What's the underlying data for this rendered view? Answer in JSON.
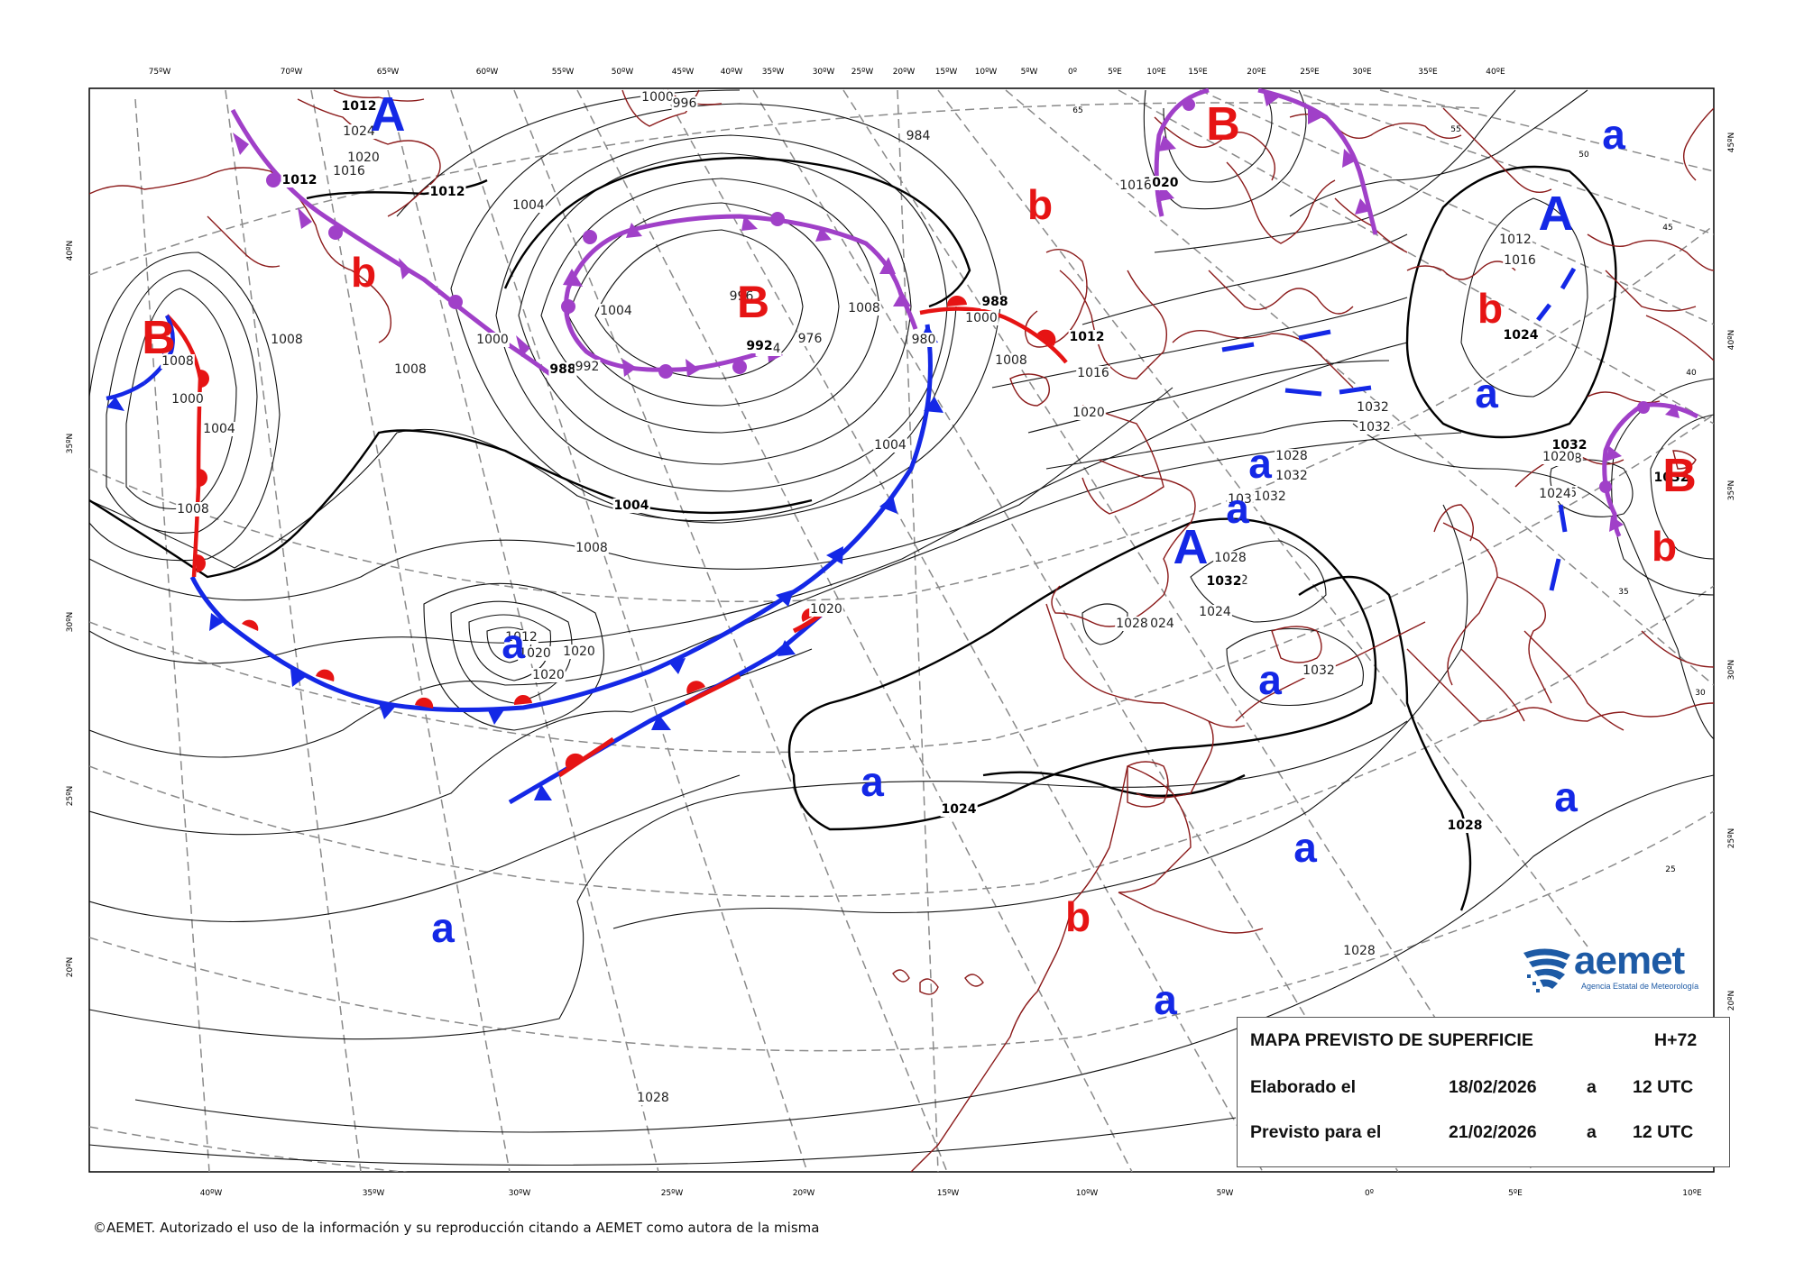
{
  "infobox": {
    "title": "MAPA PREVISTO DE SUPERFICIE",
    "horizon": "H+72",
    "issued_label": "Elaborado el",
    "issued_date": "18/02/2026",
    "issued_at": "a",
    "issued_time": "12 UTC",
    "valid_label": "Previsto para el",
    "valid_date": "21/02/2026",
    "valid_at": "a",
    "valid_time": "12 UTC"
  },
  "logo": {
    "name": "aemet",
    "subtitle": "Agencia Estatal de Meteorología",
    "icon": "aemet-logo-icon"
  },
  "copyright": "©AEMET. Autorizado el uso de la información y su reproducción citando a AEMET como autora de la misma",
  "axis_labels": {
    "top": [
      "75ºW",
      "70ºW",
      "65ºW",
      "60ºW",
      "55ºW",
      "50ºW",
      "45ºW",
      "40ºW",
      "35ºW",
      "30ºW",
      "25ºW",
      "20ºW",
      "15ºW",
      "10ºW",
      "5ºW",
      "0º",
      "5ºE",
      "10ºE",
      "15ºE",
      "20ºE",
      "25ºE",
      "30ºE",
      "35ºE",
      "40ºE"
    ],
    "bottom": [
      "40ºW",
      "35ºW",
      "30ºW",
      "25ºW",
      "20ºW",
      "15ºW",
      "10ºW",
      "5ºW",
      "0º",
      "5ºE",
      "10ºE"
    ],
    "left": [
      "40ºN",
      "35ºN",
      "30ºN",
      "25ºN",
      "20ºN"
    ],
    "right": [
      "45ºN",
      "40ºN",
      "35ºN",
      "30ºN",
      "25ºN",
      "20ºN"
    ]
  },
  "inner_grid_labels": [
    "65",
    "55",
    "50",
    "45",
    "40",
    "35",
    "30",
    "25"
  ],
  "isobar_labels": [
    "1012",
    "1024",
    "1020",
    "1016",
    "1012",
    "1012",
    "1004",
    "1008",
    "1000",
    "1004",
    "1008",
    "1008",
    "1008",
    "1000",
    "1004",
    "1008",
    "988",
    "1000",
    "996",
    "1004",
    "1008",
    "976",
    "984",
    "992",
    "988",
    "992",
    "980",
    "984",
    "1000",
    "996",
    "1004",
    "1008",
    "1012",
    "1016",
    "1020",
    "1012",
    "1016",
    "1024",
    "1028",
    "1032",
    "1032",
    "1032",
    "1028",
    "1032",
    "1032",
    "1032",
    "1032",
    "1028",
    "1024",
    "1024",
    "1028",
    "1032",
    "1032",
    "1028",
    "1020",
    "1016",
    "1012",
    "1020",
    "1020",
    "1020",
    "1020",
    "1024",
    "1028",
    "1028",
    "1028",
    "1024",
    "1020",
    "1016",
    "996",
    "1008",
    "1032"
  ],
  "pressure_centers": [
    {
      "label": "A",
      "kind": "high"
    },
    {
      "label": "A",
      "kind": "high"
    },
    {
      "label": "A",
      "kind": "high"
    },
    {
      "label": "B",
      "kind": "low"
    },
    {
      "label": "B",
      "kind": "low"
    },
    {
      "label": "B",
      "kind": "low"
    },
    {
      "label": "B",
      "kind": "low"
    }
  ],
  "relative_marks": [
    {
      "label": "a",
      "kind": "relative-high"
    },
    {
      "label": "a",
      "kind": "relative-high"
    },
    {
      "label": "a",
      "kind": "relative-high"
    },
    {
      "label": "a",
      "kind": "relative-high"
    },
    {
      "label": "a",
      "kind": "relative-high"
    },
    {
      "label": "a",
      "kind": "relative-high"
    },
    {
      "label": "a",
      "kind": "relative-high"
    },
    {
      "label": "a",
      "kind": "relative-high"
    },
    {
      "label": "a",
      "kind": "relative-high"
    },
    {
      "label": "a",
      "kind": "relative-high"
    },
    {
      "label": "a",
      "kind": "relative-high"
    },
    {
      "label": "b",
      "kind": "relative-low"
    },
    {
      "label": "b",
      "kind": "relative-low"
    },
    {
      "label": "b",
      "kind": "relative-low"
    },
    {
      "label": "b",
      "kind": "relative-low"
    },
    {
      "label": "b",
      "kind": "relative-low"
    }
  ],
  "fronts": [
    {
      "type": "occluded",
      "color": "#a040c8"
    },
    {
      "type": "occluded",
      "color": "#a040c8"
    },
    {
      "type": "occluded",
      "color": "#a040c8"
    },
    {
      "type": "occluded",
      "color": "#a040c8"
    },
    {
      "type": "cold",
      "color": "#1428e6"
    },
    {
      "type": "warm",
      "color": "#e61414"
    },
    {
      "type": "stationary",
      "color": "#1428e6"
    },
    {
      "type": "trough",
      "color": "#1428e6"
    }
  ],
  "colors": {
    "high": "#1428e6",
    "low": "#e61414",
    "coast": "#8b1a1a",
    "isobar": "#000000",
    "grid": "#7a7a7a",
    "occluded": "#a040c8"
  }
}
